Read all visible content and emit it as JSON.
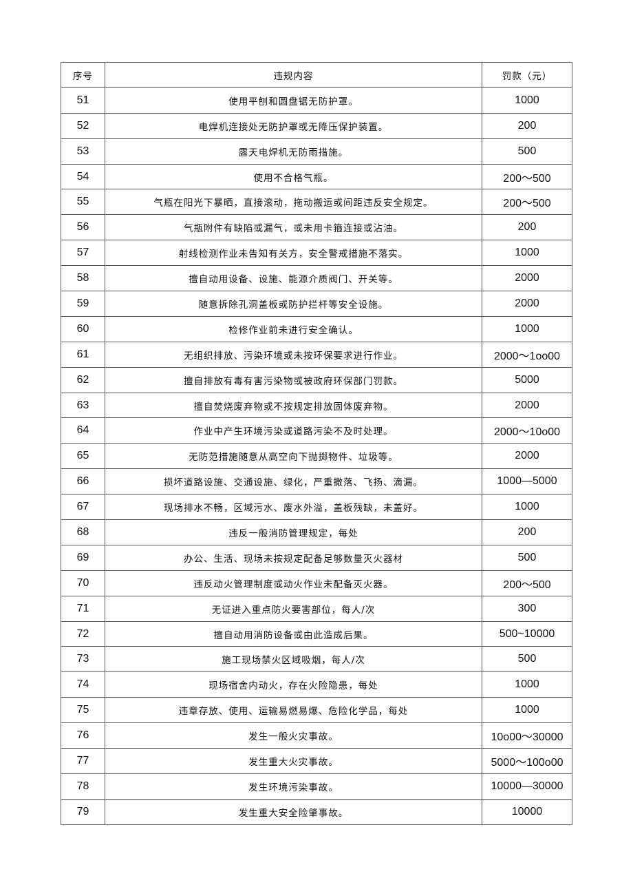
{
  "table": {
    "headers": [
      "序号",
      "违规内容",
      "罚款（元）"
    ],
    "rows": [
      [
        "51",
        "使用平刨和圆盘锯无防护罩。",
        "1000"
      ],
      [
        "52",
        "电焊机连接处无防护罩或无降压保护装置。",
        "200"
      ],
      [
        "53",
        "露天电焊机无防雨措施。",
        "500"
      ],
      [
        "54",
        "使用不合格气瓶。",
        "200～500"
      ],
      [
        "55",
        "气瓶在阳光下暴晒，直接滚动，拖动搬运或间距违反安全规定。",
        "200～500"
      ],
      [
        "56",
        "气瓶附件有缺陷或漏气，或未用卡箍连接或沾油。",
        "200"
      ],
      [
        "57",
        "射线检测作业未告知有关方，安全警戒措施不落实。",
        "1000"
      ],
      [
        "58",
        "擅自动用设备、设施、能源介质阀门、开关等。",
        "2000"
      ],
      [
        "59",
        "随意拆除孔洞盖板或防护拦杆等安全设施。",
        "2000"
      ],
      [
        "60",
        "检修作业前未进行安全确认。",
        "1000"
      ],
      [
        "61",
        "无组织排放、污染环境或未按环保要求进行作业。",
        "2000～1oo00"
      ],
      [
        "62",
        "擅自排放有毒有害污染物或被政府环保部门罚款。",
        "5000"
      ],
      [
        "63",
        "擅自焚烧废弃物或不按规定排放固体废弃物。",
        "2000"
      ],
      [
        "64",
        "作业中产生环境污染或道路污染不及时处理。",
        "2000～10o00"
      ],
      [
        "65",
        "无防范措施随意从高空向下抛掷物件、垃圾等。",
        "2000"
      ],
      [
        "66",
        "损坏道路设施、交通设施、绿化，严重撒落、飞扬、滴漏。",
        "1000—5000"
      ],
      [
        "67",
        "现场排水不畅，区域污水、废水外溢，盖板残缺，未盖好。",
        "1000"
      ],
      [
        "68",
        "违反一般消防管理规定，每处",
        "200"
      ],
      [
        "69",
        "办公、生活、现场未按规定配备足够数量灭火器材",
        "500"
      ],
      [
        "70",
        "违反动火管理制度或动火作业未配备灭火器。",
        "200～500"
      ],
      [
        "71",
        "无证进入重点防火要害部位，每人/次",
        "300"
      ],
      [
        "72",
        "擅自动用消防设备或由此造成后果。",
        "500~10000"
      ],
      [
        "73",
        "施工现场禁火区域吸烟，每人/次",
        "500"
      ],
      [
        "74",
        "现场宿舍内动火，存在火险隐患，每处",
        "1000"
      ],
      [
        "75",
        "违章存放、使用、运输易燃易爆、危险化学品，每处",
        "1000"
      ],
      [
        "76",
        "发生一般火灾事故。",
        "10o00～30000"
      ],
      [
        "77",
        "发生重大火灾事故。",
        "5000～100o00"
      ],
      [
        "78",
        "发生环境污染事故。",
        "10000—30000"
      ],
      [
        "79",
        "发生重大安全险肇事故。",
        "10000"
      ]
    ]
  }
}
